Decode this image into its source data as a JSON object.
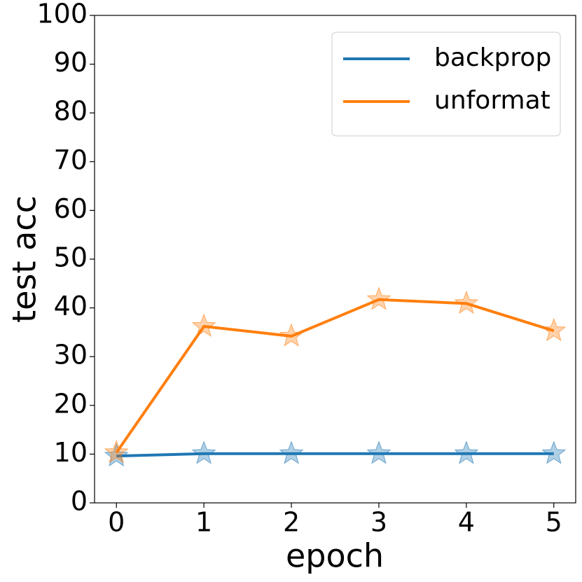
{
  "chart_data": {
    "type": "line",
    "x_label": "epoch",
    "y_label": "test acc",
    "x": [
      0,
      1,
      2,
      3,
      4,
      5
    ],
    "series": [
      {
        "name": "backprop",
        "color": "#1f77b4",
        "values": [
          9.6,
          10.1,
          10.1,
          10.1,
          10.1,
          10.1
        ]
      },
      {
        "name": "unformat",
        "color": "#ff7f0e",
        "values": [
          10.3,
          36.2,
          34.2,
          41.7,
          40.9,
          35.3
        ]
      }
    ],
    "xlim": [
      -0.25,
      5.25
    ],
    "xticks": [
      0,
      1,
      2,
      3,
      4,
      5
    ],
    "ylim": [
      0,
      100
    ],
    "yticks": [
      0,
      10,
      20,
      30,
      40,
      50,
      60,
      70,
      80,
      90,
      100
    ],
    "marker": "star",
    "legend": "upper right",
    "grid": false
  }
}
